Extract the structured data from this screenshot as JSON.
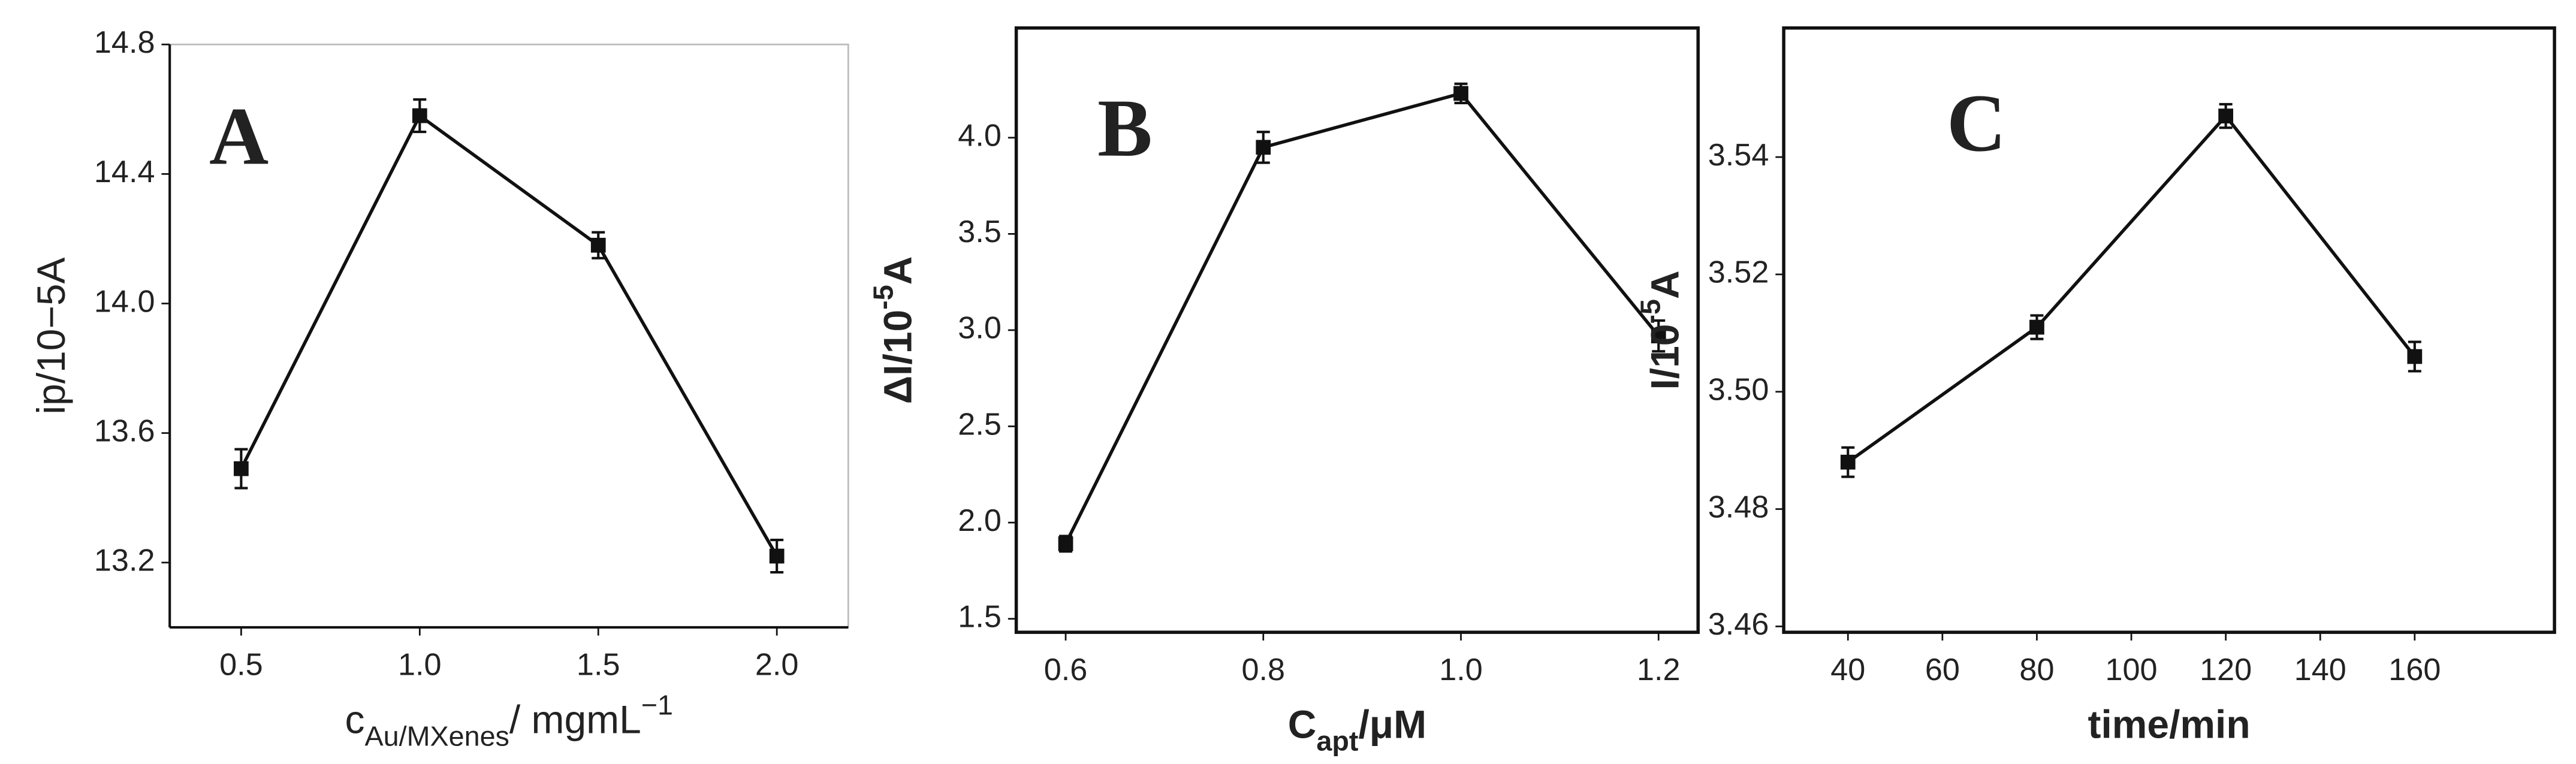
{
  "chart_data": [
    {
      "type": "line",
      "panel": "A",
      "x": [
        0.5,
        1.0,
        1.5,
        2.0
      ],
      "values": [
        13.49,
        14.58,
        14.18,
        13.22
      ],
      "errors": [
        0.06,
        0.05,
        0.04,
        0.05
      ],
      "xlim": [
        0.3,
        2.2
      ],
      "xticks": [
        {
          "value": 0.5,
          "label": "0.5"
        },
        {
          "value": 1.0,
          "label": "1.0"
        },
        {
          "value": 1.5,
          "label": "1.5"
        },
        {
          "value": 2.0,
          "label": "2.0"
        }
      ],
      "ylim": [
        13.0,
        14.8
      ],
      "yticks": [
        13.2,
        13.6,
        {
          "value": 14.0,
          "label": "14.0"
        },
        14.4,
        14.8
      ],
      "xlabel": [
        {
          "text": "c"
        },
        {
          "text": "Au/MXenes",
          "shift": "sub"
        },
        {
          "text": "/ mgmL"
        },
        {
          "text": "−1",
          "shift": "sup"
        }
      ],
      "ylabel": [
        {
          "text": "ip/10−5A"
        }
      ],
      "label_bold": false,
      "frame": false,
      "color": "#111"
    },
    {
      "type": "line",
      "panel": "B",
      "x": [
        0.6,
        0.8,
        1.0,
        1.2
      ],
      "values": [
        1.89,
        3.95,
        4.23,
        2.97
      ],
      "errors": [
        0.04,
        0.08,
        0.05,
        0.08
      ],
      "xlim": [
        0.55,
        1.24
      ],
      "xticks": [
        0.6,
        0.8,
        {
          "value": 1.0,
          "label": "1.0"
        },
        1.2
      ],
      "ylim": [
        1.43,
        4.57
      ],
      "yticks": [
        1.5,
        {
          "value": 2.0,
          "label": "2.0"
        },
        2.5,
        {
          "value": 3.0,
          "label": "3.0"
        },
        3.5,
        {
          "value": 4.0,
          "label": "4.0"
        }
      ],
      "xlabel": [
        {
          "text": "C"
        },
        {
          "text": "apt",
          "shift": "sub"
        },
        {
          "text": "/μM"
        }
      ],
      "ylabel": [
        {
          "text": "ΔI/10"
        },
        {
          "text": "-5",
          "shift": "sup"
        },
        {
          "text": "A"
        }
      ],
      "label_bold": true,
      "frame": true,
      "color": "#111"
    },
    {
      "type": "line",
      "panel": "C",
      "x": [
        40,
        80,
        120,
        160
      ],
      "values": [
        3.488,
        3.511,
        3.547,
        3.506
      ],
      "errors": [
        0.0025,
        0.002,
        0.002,
        0.0025
      ],
      "xlim": [
        26.4,
        189.6
      ],
      "xticks": [
        40,
        60,
        80,
        100,
        120,
        140,
        160
      ],
      "ylim": [
        3.459,
        3.562
      ],
      "yticks": [
        3.46,
        3.48,
        {
          "value": 3.5,
          "label": "3.50"
        },
        3.52,
        3.54
      ],
      "xlabel": [
        {
          "text": "time/min"
        }
      ],
      "ylabel": [
        {
          "text": "I/10"
        },
        {
          "text": "-5",
          "shift": "sup"
        },
        {
          "text": "A"
        }
      ],
      "label_bold": true,
      "frame": true,
      "color": "#111"
    }
  ]
}
